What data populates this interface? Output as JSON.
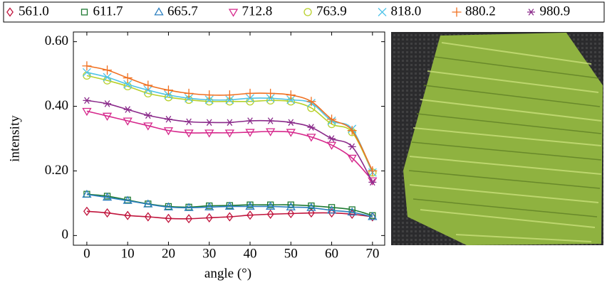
{
  "chart_data": {
    "type": "line",
    "xlabel": "angle (°)",
    "ylabel": "intensity",
    "x": [
      0,
      5,
      10,
      15,
      20,
      25,
      30,
      35,
      40,
      45,
      50,
      55,
      60,
      65,
      70
    ],
    "xlim": [
      -3.3,
      73
    ],
    "xticks": [
      0,
      10,
      20,
      30,
      40,
      50,
      60,
      70
    ],
    "ylim": [
      -0.03,
      0.63
    ],
    "yticks": [
      0,
      {
        "value": 0.2,
        "label": "0.20"
      },
      {
        "value": 0.4,
        "label": "0.40"
      },
      {
        "value": 0.6,
        "label": "0.60"
      }
    ],
    "series": [
      {
        "name": "561.0",
        "color": "#c0143c",
        "marker": "diamond",
        "values": [
          0.075,
          0.07,
          0.062,
          0.058,
          0.053,
          0.052,
          0.055,
          0.058,
          0.063,
          0.066,
          0.068,
          0.07,
          0.07,
          0.066,
          0.058
        ]
      },
      {
        "name": "611.7",
        "color": "#1e7a32",
        "marker": "square",
        "values": [
          0.128,
          0.122,
          0.11,
          0.098,
          0.09,
          0.088,
          0.092,
          0.093,
          0.095,
          0.095,
          0.095,
          0.092,
          0.087,
          0.08,
          0.062
        ]
      },
      {
        "name": "665.7",
        "color": "#2b7fbf",
        "marker": "triangle",
        "values": [
          0.127,
          0.118,
          0.108,
          0.097,
          0.088,
          0.086,
          0.088,
          0.09,
          0.09,
          0.09,
          0.088,
          0.086,
          0.078,
          0.072,
          0.058
        ]
      },
      {
        "name": "712.8",
        "color": "#d6288c",
        "marker": "triangle-down",
        "values": [
          0.385,
          0.37,
          0.355,
          0.34,
          0.325,
          0.318,
          0.318,
          0.318,
          0.32,
          0.322,
          0.32,
          0.305,
          0.28,
          0.24,
          0.17
        ]
      },
      {
        "name": "763.9",
        "color": "#b8d02a",
        "marker": "circle",
        "values": [
          0.495,
          0.48,
          0.462,
          0.44,
          0.428,
          0.42,
          0.415,
          0.415,
          0.415,
          0.418,
          0.415,
          0.395,
          0.345,
          0.32,
          0.195
        ]
      },
      {
        "name": "818.0",
        "color": "#4fc3e8",
        "marker": "x",
        "values": [
          0.505,
          0.49,
          0.468,
          0.45,
          0.435,
          0.425,
          0.42,
          0.42,
          0.425,
          0.425,
          0.42,
          0.41,
          0.355,
          0.33,
          0.195
        ]
      },
      {
        "name": "880.2",
        "color": "#f07020",
        "marker": "plus",
        "values": [
          0.525,
          0.512,
          0.488,
          0.465,
          0.45,
          0.44,
          0.435,
          0.435,
          0.44,
          0.44,
          0.435,
          0.415,
          0.36,
          0.325,
          0.2
        ]
      },
      {
        "name": "980.9",
        "color": "#8a2a8a",
        "marker": "star",
        "values": [
          0.418,
          0.408,
          0.39,
          0.372,
          0.36,
          0.352,
          0.35,
          0.35,
          0.355,
          0.355,
          0.35,
          0.335,
          0.3,
          0.275,
          0.165
        ]
      }
    ]
  }
}
